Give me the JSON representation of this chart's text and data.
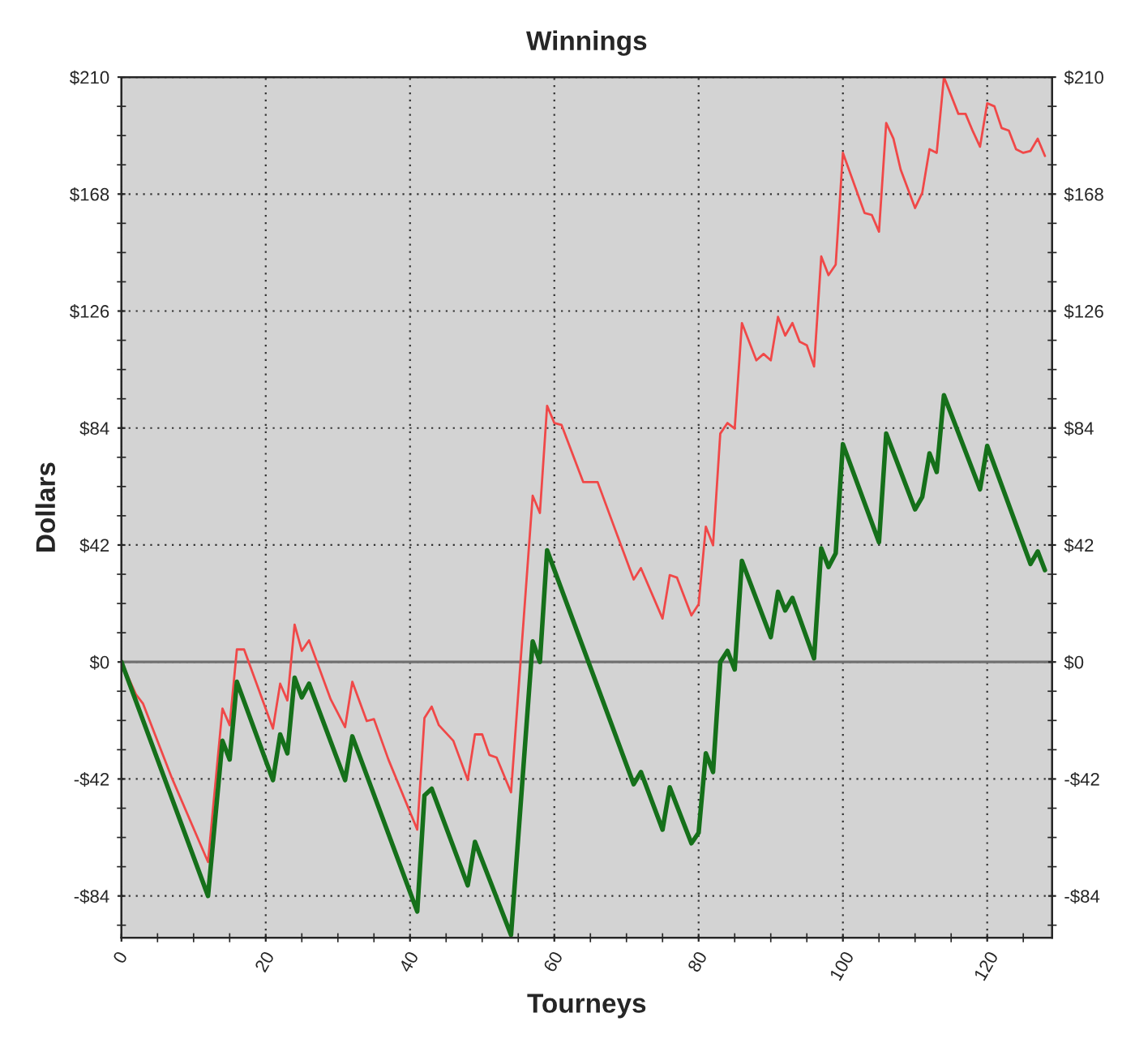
{
  "chart_data": {
    "type": "line",
    "title": "Winnings",
    "xlabel": "Tourneys",
    "ylabel": "Dollars",
    "xlim": [
      0,
      129
    ],
    "xticks": [
      0,
      20,
      40,
      60,
      80,
      100,
      120
    ],
    "ylim": [
      -99,
      210
    ],
    "yticks": [
      {
        "value": -84,
        "label": "-$84"
      },
      {
        "value": -42,
        "label": "-$42"
      },
      {
        "value": 0,
        "label": "$0"
      },
      {
        "value": 42,
        "label": "$42"
      },
      {
        "value": 84,
        "label": "$84"
      },
      {
        "value": 126,
        "label": "$126"
      },
      {
        "value": 168,
        "label": "$168"
      },
      {
        "value": 210,
        "label": "$210"
      }
    ],
    "y2lim": [
      -99,
      210
    ],
    "y2ticks": [
      {
        "value": -84,
        "label": "-$84"
      },
      {
        "value": -42,
        "label": "-$42"
      },
      {
        "value": 0,
        "label": "$0"
      },
      {
        "value": 42,
        "label": "$42"
      },
      {
        "value": 84,
        "label": "$84"
      },
      {
        "value": 126,
        "label": "$126"
      },
      {
        "value": 168,
        "label": "$168"
      },
      {
        "value": 210,
        "label": "$210"
      }
    ],
    "grid": true,
    "legend": false,
    "line_style": "solid",
    "marker": "none",
    "ref_lines": [
      {
        "axis": "y",
        "value": 0,
        "label": null,
        "color": "#707070"
      }
    ],
    "series": [
      {
        "color": "#f04848",
        "x": [
          0,
          2,
          3,
          7,
          12,
          14,
          15,
          16,
          17,
          21,
          22,
          23,
          24,
          25,
          26,
          29,
          31,
          32,
          34,
          35,
          37,
          41,
          42,
          43,
          44,
          46,
          48,
          49,
          50,
          51,
          52,
          54,
          57,
          58,
          59,
          60,
          61,
          64,
          66,
          71,
          72,
          75,
          76,
          77,
          79,
          80,
          81,
          82,
          83,
          84,
          85,
          86,
          88,
          89,
          90,
          91,
          92,
          93,
          94,
          95,
          96,
          97,
          98,
          99,
          100,
          103,
          104,
          105,
          106,
          107,
          108,
          110,
          111,
          112,
          113,
          114,
          116,
          117,
          118,
          119,
          120,
          121,
          122,
          123,
          124,
          125,
          126,
          127,
          128
        ],
        "values": [
          0,
          -11.6,
          -15,
          -41.7,
          -71.8,
          -16.7,
          -22.7,
          4.5,
          4.5,
          -23.9,
          -7.8,
          -13.8,
          13.4,
          4,
          7.8,
          -13.4,
          -23.4,
          -7.1,
          -21.2,
          -20.5,
          -35,
          -60.2,
          -20.1,
          -16,
          -22.7,
          -28.3,
          -42.4,
          -26,
          -26,
          -33.4,
          -34.3,
          -46.8,
          59.7,
          53.5,
          92,
          85.8,
          85.1,
          64.6,
          64.6,
          29.6,
          33.7,
          15.6,
          31.2,
          30.3,
          16.7,
          20.7,
          48.6,
          41.9,
          82,
          85.8,
          83.8,
          121.7,
          108.3,
          110.6,
          108.3,
          123.9,
          117.2,
          121.7,
          115,
          113.7,
          106.1,
          145.6,
          138.9,
          142.7,
          182.8,
          161.2,
          160.5,
          154.5,
          193.5,
          187.9,
          176.8,
          163,
          168.5,
          184.1,
          182.8,
          210,
          196.8,
          196.8,
          190.6,
          185,
          200.6,
          199.5,
          191.7,
          190.8,
          184.1,
          182.8,
          183.5,
          187.9,
          181.7
        ]
      },
      {
        "color": "#15701a",
        "x": [
          0,
          12,
          14,
          15,
          16,
          21,
          22,
          23,
          24,
          25,
          26,
          31,
          32,
          41,
          42,
          43,
          48,
          49,
          54,
          57,
          58,
          59,
          71,
          72,
          75,
          76,
          79,
          80,
          81,
          82,
          83,
          84,
          85,
          86,
          90,
          91,
          92,
          93,
          96,
          97,
          98,
          99,
          100,
          105,
          106,
          110,
          111,
          112,
          113,
          114,
          119,
          120,
          126,
          127,
          128
        ],
        "values": [
          0,
          -84,
          -28.3,
          -35,
          -7.1,
          -42.4,
          -26,
          -32.8,
          -5.6,
          -12.7,
          -7.8,
          -42.4,
          -26.7,
          -89.6,
          -47.9,
          -45.5,
          -80.2,
          -64.6,
          -98,
          7.4,
          0,
          40.1,
          -43.9,
          -39.5,
          -60.2,
          -45,
          -65.1,
          -61.3,
          -32.8,
          -39.5,
          0,
          4,
          -2.7,
          36.3,
          8.9,
          25.2,
          18.5,
          23,
          1.3,
          40.8,
          34.1,
          39,
          78.2,
          43,
          82,
          54.8,
          59.3,
          74.9,
          68.2,
          95.8,
          62,
          77.6,
          35.2,
          39.7,
          33
        ]
      }
    ]
  }
}
